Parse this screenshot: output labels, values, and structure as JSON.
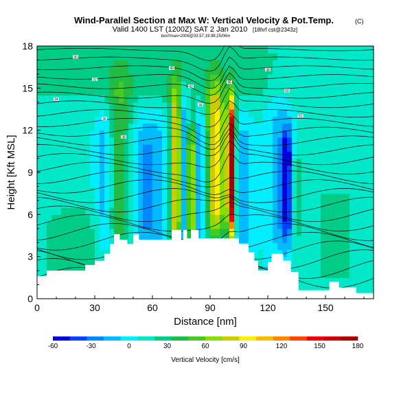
{
  "chart_data": {
    "type": "heatmap",
    "title": "Wind-Parallel Section at Max W: Vertical Velocity & Pot.Temp.",
    "title_suffix": "(C)",
    "subtitle": "Valid 1400 LST (1200Z) SAT 2 Jan 2010",
    "subtitle_suffix": "[18hrf cst@2343z]",
    "info_line": "box!!max=2006@33.57,19.98;25/06m",
    "xlabel": "Distance [nm]",
    "ylabel": "Height [Kft MSL]",
    "xlim": [
      0,
      175
    ],
    "ylim": [
      0,
      18
    ],
    "xticks": [
      0,
      30,
      60,
      90,
      120,
      150
    ],
    "yticks": [
      0,
      3,
      6,
      9,
      12,
      15,
      18
    ],
    "colorbar": {
      "label": "Vertical Velocity [cm/s]",
      "ticks": [
        "-60",
        "-30",
        "0",
        "30",
        "60",
        "90",
        "120",
        "150",
        "180"
      ],
      "min": -60,
      "max": 180,
      "colors": [
        "#0000dd",
        "#0044ff",
        "#0088ff",
        "#00bbff",
        "#00eeff",
        "#00e8c8",
        "#00cc88",
        "#22bb44",
        "#44cc22",
        "#88dd00",
        "#cccc00",
        "#ffee00",
        "#ffbb00",
        "#ff8800",
        "#ff4400",
        "#ee0000",
        "#cc0000",
        "#aa0000"
      ]
    },
    "terrain": [
      [
        0,
        1.6
      ],
      [
        5,
        1.6
      ],
      [
        5,
        2.0
      ],
      [
        12,
        2.0
      ],
      [
        12,
        2.0
      ],
      [
        25,
        2.0
      ],
      [
        25,
        2.4
      ],
      [
        30,
        2.4
      ],
      [
        30,
        2.7
      ],
      [
        35,
        2.7
      ],
      [
        35,
        3.2
      ],
      [
        38,
        3.2
      ],
      [
        38,
        3.9
      ],
      [
        40,
        3.9
      ],
      [
        40,
        4.6
      ],
      [
        43,
        4.6
      ],
      [
        43,
        4.2
      ],
      [
        47,
        4.2
      ],
      [
        47,
        3.9
      ],
      [
        50,
        3.9
      ],
      [
        50,
        4.6
      ],
      [
        53,
        4.6
      ],
      [
        53,
        4.2
      ],
      [
        70,
        4.2
      ],
      [
        70,
        4.9
      ],
      [
        75,
        4.9
      ],
      [
        75,
        4.2
      ],
      [
        76,
        4.2
      ],
      [
        76,
        4.9
      ],
      [
        78,
        4.9
      ],
      [
        78,
        4.3
      ],
      [
        80,
        4.3
      ],
      [
        80,
        4.9
      ],
      [
        84,
        4.9
      ],
      [
        84,
        4.3
      ],
      [
        105,
        4.3
      ],
      [
        105,
        3.9
      ],
      [
        110,
        3.9
      ],
      [
        110,
        3.3
      ],
      [
        113,
        3.3
      ],
      [
        113,
        2.7
      ],
      [
        115,
        2.7
      ],
      [
        115,
        2.0
      ],
      [
        120,
        2.0
      ],
      [
        120,
        2.6
      ],
      [
        122,
        2.6
      ],
      [
        122,
        3.2
      ],
      [
        128,
        3.2
      ],
      [
        128,
        2.7
      ],
      [
        132,
        2.7
      ],
      [
        132,
        1.9
      ],
      [
        136,
        1.9
      ],
      [
        136,
        0.6
      ],
      [
        152,
        0.6
      ],
      [
        152,
        1.2
      ],
      [
        157,
        1.2
      ],
      [
        157,
        0.8
      ],
      [
        166,
        0.8
      ],
      [
        166,
        0.4
      ],
      [
        175,
        0.4
      ]
    ],
    "features": [
      {
        "x": 43,
        "half_width": 6,
        "ylo": 4,
        "yhi": 15,
        "w": 35
      },
      {
        "x": 35,
        "half_width": 4,
        "ylo": 4,
        "yhi": 12.5,
        "w": -25
      },
      {
        "x": 57,
        "half_width": 6,
        "ylo": 4,
        "yhi": 12,
        "w": -30
      },
      {
        "x": 64,
        "half_width": 4,
        "ylo": 4,
        "yhi": 12,
        "w": -15
      },
      {
        "x": 72,
        "half_width": 3,
        "ylo": 4,
        "yhi": 14.3,
        "w": 80
      },
      {
        "x": 77,
        "half_width": 2,
        "ylo": 4,
        "yhi": 14,
        "w": -45
      },
      {
        "x": 80,
        "half_width": 1.8,
        "ylo": 4,
        "yhi": 12,
        "w": 100
      },
      {
        "x": 85,
        "half_width": 2.5,
        "ylo": 4,
        "yhi": 13,
        "w": -30
      },
      {
        "x": 93,
        "half_width": 5,
        "ylo": 5,
        "yhi": 14.5,
        "w": 85
      },
      {
        "x": 101,
        "half_width": 2,
        "ylo": 5,
        "yhi": 13.5,
        "w": 165
      },
      {
        "x": 107,
        "half_width": 5,
        "ylo": 4,
        "yhi": 12,
        "w": -25
      },
      {
        "x": 130,
        "half_width": 3,
        "ylo": 5,
        "yhi": 11.5,
        "w": -60
      },
      {
        "x": 126,
        "half_width": 6,
        "ylo": 3,
        "yhi": 14,
        "w": -20
      },
      {
        "x": 135,
        "half_width": 3,
        "ylo": 5,
        "yhi": 10,
        "w": 25
      },
      {
        "x": 18,
        "half_width": 14,
        "ylo": 1,
        "yhi": 6,
        "w": 25
      },
      {
        "x": 155,
        "half_width": 18,
        "ylo": 1,
        "yhi": 8,
        "w": 15
      },
      {
        "x": 60,
        "half_width": 100,
        "ylo": 14.5,
        "yhi": 18,
        "w": 20
      }
    ],
    "contour_labels": [
      "30",
      "32",
      "34",
      "36",
      "38",
      "40",
      "42",
      "44",
      "46",
      "48",
      "50",
      "52"
    ]
  }
}
